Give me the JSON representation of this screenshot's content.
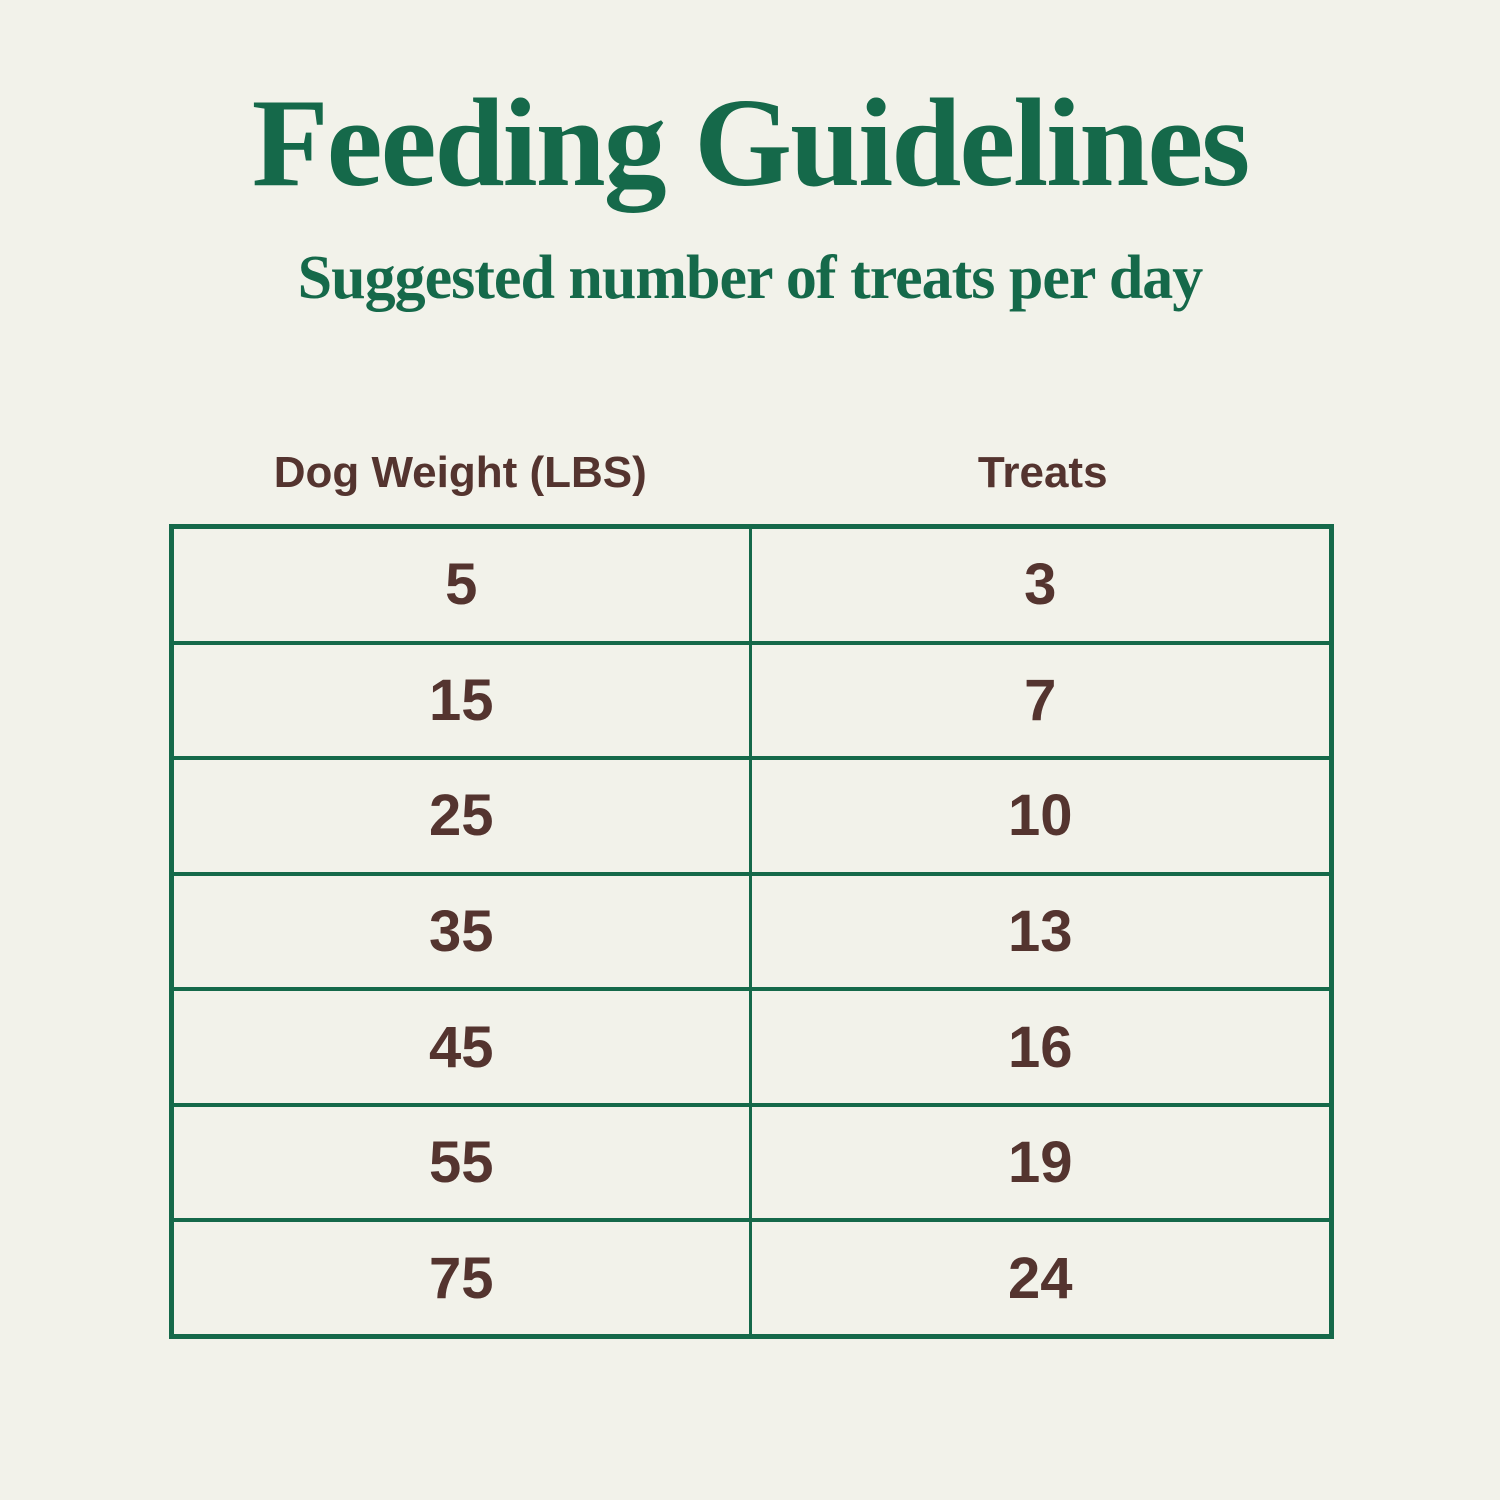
{
  "chart_data": {
    "type": "table",
    "title": "Feeding Guidelines",
    "subtitle": "Suggested number of treats per day",
    "columns": [
      "Dog Weight (LBS)",
      "Treats"
    ],
    "rows": [
      [
        "5",
        "3"
      ],
      [
        "15",
        "7"
      ],
      [
        "25",
        "10"
      ],
      [
        "35",
        "13"
      ],
      [
        "45",
        "16"
      ],
      [
        "55",
        "19"
      ],
      [
        "75",
        "24"
      ]
    ],
    "xlabel": "Dog Weight (LBS)",
    "ylabel": "Treats"
  },
  "colors": {
    "green": "#15694a",
    "brown": "#54342f",
    "background": "#f2f2ea"
  }
}
